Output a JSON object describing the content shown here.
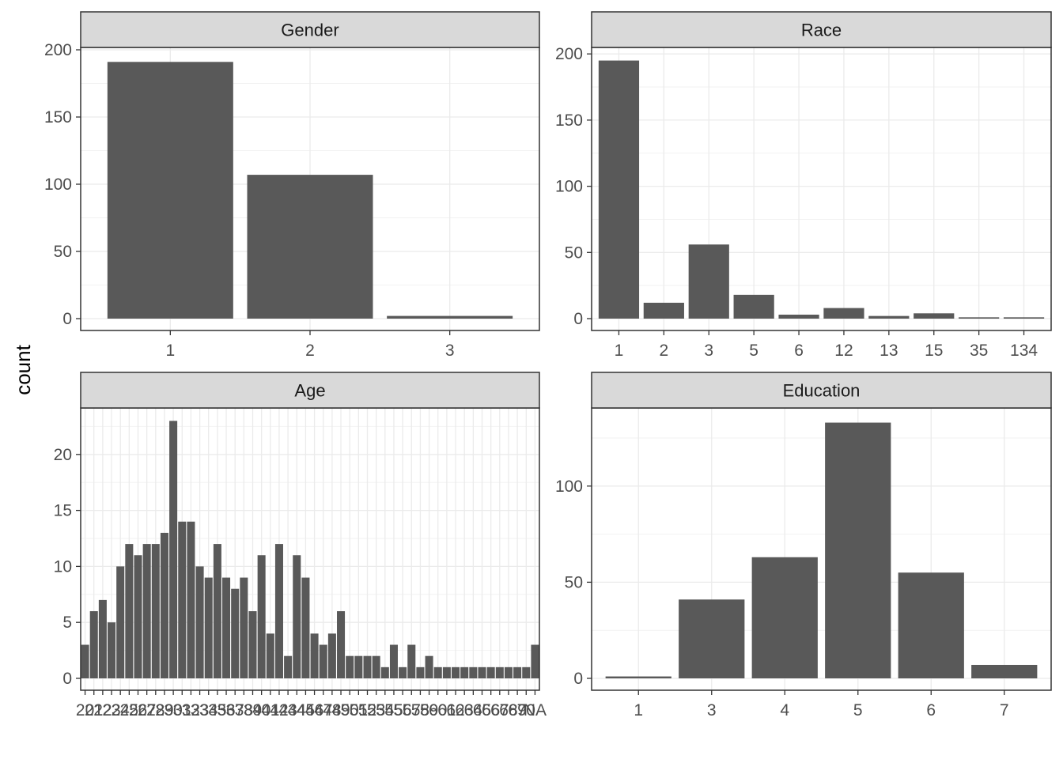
{
  "y_axis_title": "count",
  "chart_data": [
    {
      "type": "bar",
      "title": "Gender",
      "categories": [
        "1",
        "2",
        "3"
      ],
      "values": [
        191,
        107,
        2
      ],
      "ylim": [
        0,
        210
      ],
      "yticks": [
        0,
        50,
        100,
        150,
        200
      ],
      "grid": true
    },
    {
      "type": "bar",
      "title": "Race",
      "categories": [
        "1",
        "2",
        "3",
        "5",
        "6",
        "12",
        "13",
        "15",
        "35",
        "134"
      ],
      "values": [
        195,
        12,
        56,
        18,
        3,
        8,
        2,
        4,
        1,
        1
      ],
      "ylim": [
        0,
        205
      ],
      "yticks": [
        0,
        50,
        100,
        150,
        200
      ],
      "grid": true
    },
    {
      "type": "bar",
      "title": "Age",
      "categories": [
        "20",
        "21",
        "22",
        "23",
        "24",
        "25",
        "26",
        "27",
        "28",
        "29",
        "30",
        "31",
        "32",
        "33",
        "34",
        "35",
        "36",
        "37",
        "38",
        "39",
        "40",
        "41",
        "42",
        "43",
        "44",
        "45",
        "46",
        "47",
        "48",
        "49",
        "50",
        "51",
        "52",
        "53",
        "54",
        "55",
        "56",
        "57",
        "58",
        "59",
        "60",
        "61",
        "62",
        "63",
        "64",
        "65",
        "66",
        "67",
        "68",
        "69",
        "70",
        "NA"
      ],
      "values": [
        3,
        6,
        7,
        5,
        10,
        12,
        11,
        12,
        12,
        13,
        23,
        14,
        14,
        10,
        9,
        12,
        9,
        8,
        9,
        6,
        11,
        4,
        12,
        2,
        11,
        9,
        4,
        3,
        4,
        6,
        2,
        2,
        2,
        2,
        1,
        3,
        1,
        3,
        1,
        2,
        1,
        1,
        1,
        1,
        1,
        1,
        1,
        1,
        1,
        1,
        1,
        3
      ],
      "ylim": [
        0,
        24
      ],
      "yticks": [
        0,
        5,
        10,
        15,
        20
      ],
      "grid": true
    },
    {
      "type": "bar",
      "title": "Education",
      "categories": [
        "1",
        "3",
        "4",
        "5",
        "6",
        "7"
      ],
      "values": [
        1,
        41,
        63,
        133,
        55,
        7
      ],
      "ylim": [
        0,
        140
      ],
      "yticks": [
        0,
        50,
        100
      ],
      "grid": true
    }
  ]
}
